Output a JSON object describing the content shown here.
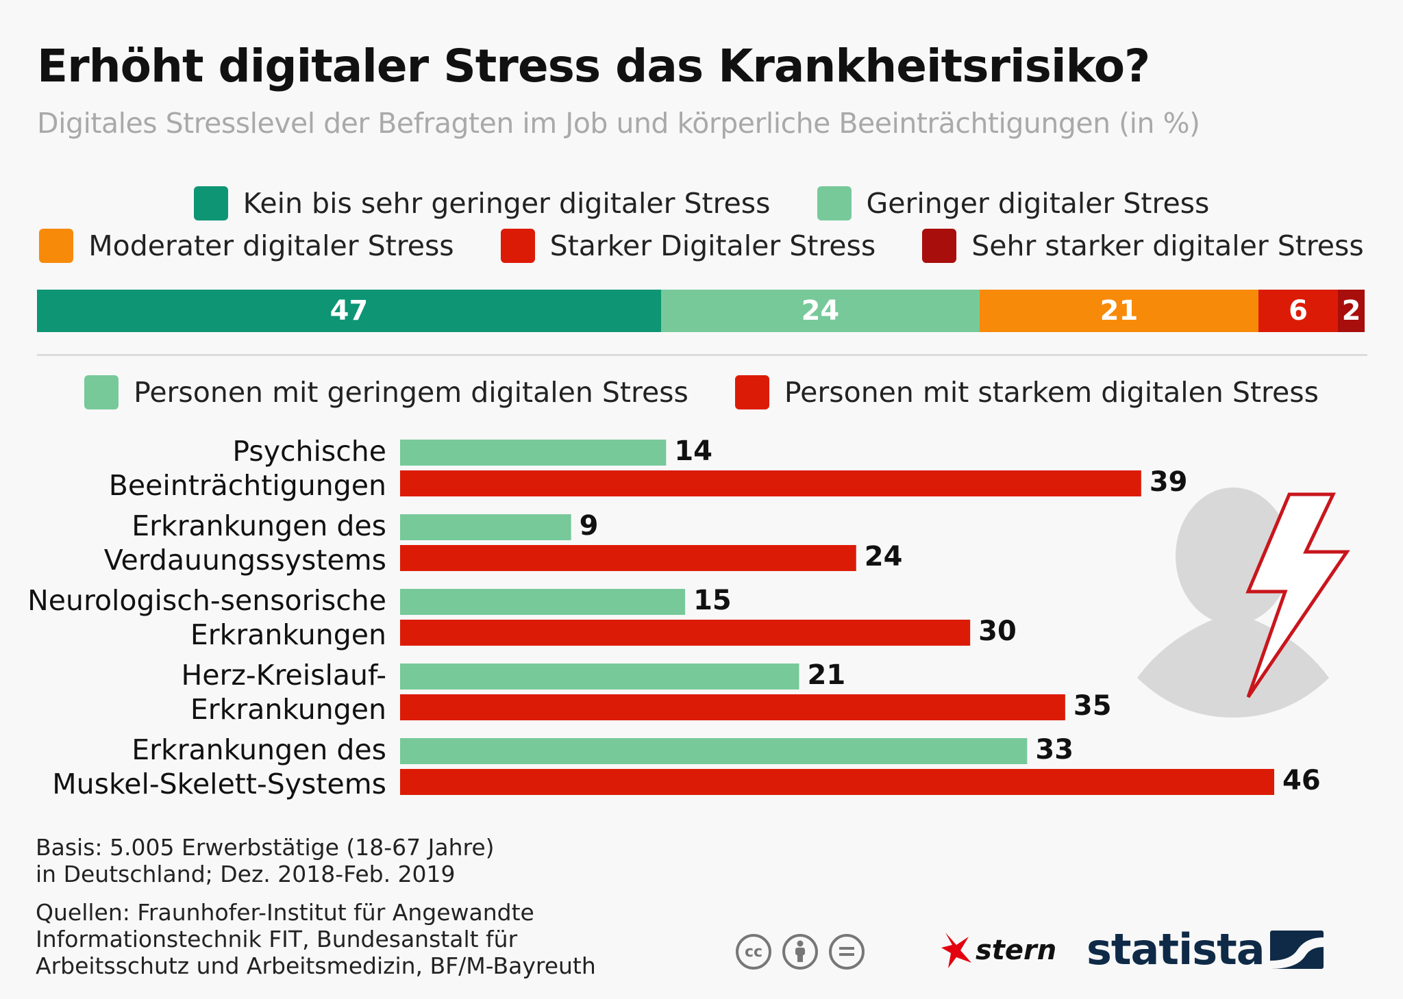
{
  "title": "Erhöht digitaler Stress das Krankheitsrisiko?",
  "subtitle": "Digitales Stresslevel der Befragten im Job und körperliche Beeinträchtigungen (in %)",
  "colors": {
    "kein": "#0e9574",
    "gering": "#77c99a",
    "moderat": "#f88a0a",
    "stark": "#dc1b06",
    "sehr_stark": "#a80e0b",
    "silhouette": "#d8d8d8"
  },
  "stress_legend": [
    {
      "label": "Kein bis sehr geringer digitaler Stress",
      "color": "#0e9574"
    },
    {
      "label": "Geringer digitaler Stress",
      "color": "#77c99a"
    },
    {
      "label": "Moderater digitaler Stress",
      "color": "#f88a0a"
    },
    {
      "label": "Starker Digitaler Stress",
      "color": "#dc1b06"
    },
    {
      "label": "Sehr starker digitaler Stress",
      "color": "#a80e0b"
    }
  ],
  "group_legend": [
    {
      "label": "Personen mit geringem digitalen Stress",
      "color": "#77c99a"
    },
    {
      "label": "Personen mit starkem digitalen Stress",
      "color": "#dc1b06"
    }
  ],
  "chart_data": [
    {
      "type": "bar",
      "orientation": "horizontal-stacked",
      "series": [
        {
          "name": "Kein bis sehr geringer digitaler Stress",
          "values": [
            47
          ]
        },
        {
          "name": "Geringer digitaler Stress",
          "values": [
            24
          ]
        },
        {
          "name": "Moderater digitaler Stress",
          "values": [
            21
          ]
        },
        {
          "name": "Starker Digitaler Stress",
          "values": [
            6
          ]
        },
        {
          "name": "Sehr starker digitaler Stress",
          "values": [
            2
          ]
        }
      ],
      "xlim": [
        0,
        100
      ],
      "legend": "top-center"
    },
    {
      "type": "bar",
      "orientation": "horizontal",
      "categories": [
        [
          "Psychische",
          "Beeinträchtigungen"
        ],
        [
          "Erkrankungen des",
          "Verdauungssystems"
        ],
        [
          "Neurologisch-sensorische",
          "Erkrankungen"
        ],
        [
          "Herz-Kreislauf-",
          "Erkrankungen"
        ],
        [
          "Erkrankungen des",
          "Muskel-Skelett-Systems"
        ]
      ],
      "series": [
        {
          "name": "Personen mit geringem digitalen Stress",
          "values": [
            14,
            9,
            15,
            21,
            33
          ]
        },
        {
          "name": "Personen mit starkem digitalen Stress",
          "values": [
            39,
            24,
            30,
            35,
            46
          ]
        }
      ],
      "xlim": [
        0,
        46
      ],
      "grid": false,
      "legend": "top-center"
    }
  ],
  "footer": {
    "basis": [
      "Basis: 5.005 Erwerbstätige (18-67 Jahre)",
      "in Deutschland; Dez. 2018-Feb. 2019"
    ],
    "sources": [
      "Quellen: Fraunhofer-Institut für Angewandte",
      "Informationstechnik FIT, Bundesanstalt für",
      "Arbeitsschutz und Arbeitsmedizin, BF/M-Bayreuth"
    ]
  },
  "license_icons": [
    "cc-icon",
    "by-icon",
    "nd-icon"
  ],
  "cc_label": "cc",
  "brands": {
    "stern": "stern",
    "statista": "statista"
  }
}
